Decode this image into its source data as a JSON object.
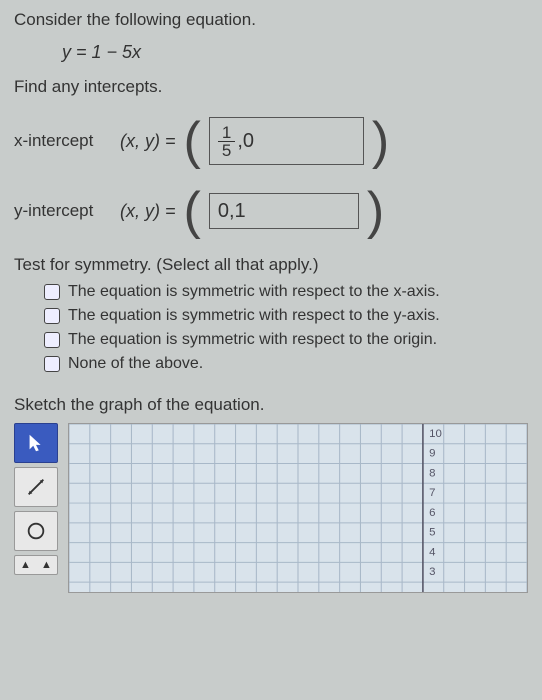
{
  "prompt": "Consider the following equation.",
  "equation": "y = 1 − 5x",
  "instruction": "Find any intercepts.",
  "x_int": {
    "label": "x-intercept",
    "xy": "(x, y) =",
    "num": "1",
    "den": "5",
    "rest": ",0"
  },
  "y_int": {
    "label": "y-intercept",
    "xy": "(x, y) =",
    "val": "0,1"
  },
  "sym": {
    "title": "Test for symmetry. (Select all that apply.)",
    "opts": [
      "The equation is symmetric with respect to the x-axis.",
      "The equation is symmetric with respect to the y-axis.",
      "The equation is symmetric with respect to the origin.",
      "None of the above."
    ]
  },
  "sketch": "Sketch the graph of the equation.",
  "graph": {
    "bg": "#d9e3eb",
    "grid_color": "#a8b8c8",
    "axis_color": "#556",
    "y_ticks": [
      "10",
      "9",
      "8",
      "7",
      "6",
      "5",
      "4",
      "3"
    ],
    "grid_step": 20
  },
  "tools": {
    "sel_bg": "#3a5bbf",
    "items": [
      "pointer",
      "line",
      "circle",
      "nav"
    ]
  }
}
